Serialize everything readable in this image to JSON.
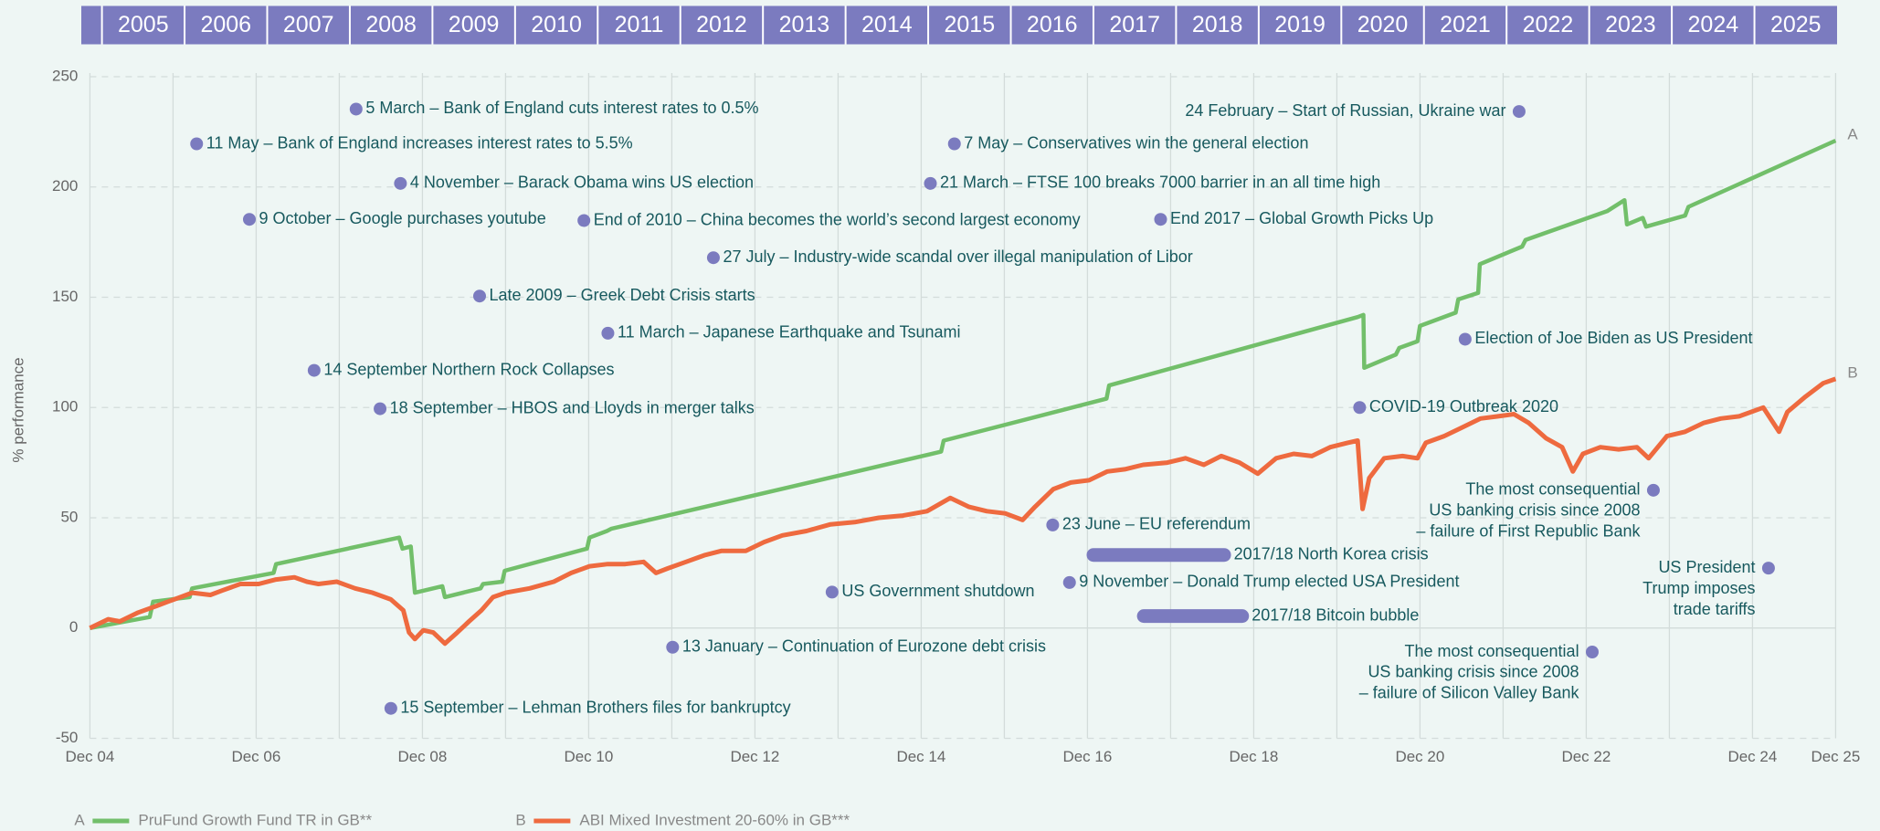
{
  "chart_data": {
    "type": "line",
    "year_header": [
      "2005",
      "2006",
      "2007",
      "2008",
      "2009",
      "2010",
      "2011",
      "2012",
      "2013",
      "2014",
      "2015",
      "2016",
      "2017",
      "2018",
      "2019",
      "2020",
      "2021",
      "2022",
      "2023",
      "2024",
      "2025"
    ],
    "ylabel": "% performance",
    "ylim": [
      -50,
      250
    ],
    "yticks": [
      -50,
      0,
      50,
      100,
      150,
      200,
      250
    ],
    "xlim": [
      2004.92,
      2025.92
    ],
    "xticks": [
      {
        "value": 2004.92,
        "label": "Dec 04"
      },
      {
        "value": 2005.92,
        "label": null
      },
      {
        "value": 2006.92,
        "label": "Dec 06"
      },
      {
        "value": 2007.92,
        "label": null
      },
      {
        "value": 2008.92,
        "label": "Dec 08"
      },
      {
        "value": 2009.92,
        "label": null
      },
      {
        "value": 2010.92,
        "label": "Dec 10"
      },
      {
        "value": 2011.92,
        "label": null
      },
      {
        "value": 2012.92,
        "label": "Dec 12"
      },
      {
        "value": 2013.92,
        "label": null
      },
      {
        "value": 2014.92,
        "label": "Dec 14"
      },
      {
        "value": 2015.92,
        "label": null
      },
      {
        "value": 2016.92,
        "label": "Dec 16"
      },
      {
        "value": 2017.92,
        "label": null
      },
      {
        "value": 2018.92,
        "label": "Dec 18"
      },
      {
        "value": 2019.92,
        "label": null
      },
      {
        "value": 2020.92,
        "label": "Dec 20"
      },
      {
        "value": 2021.92,
        "label": null
      },
      {
        "value": 2022.92,
        "label": "Dec 22"
      },
      {
        "value": 2023.92,
        "label": null
      },
      {
        "value": 2024.92,
        "label": "Dec 24"
      },
      {
        "value": 2025.92,
        "label": "Dec 25"
      }
    ],
    "grid": true,
    "series": [
      {
        "name": "PruFund Growth Fund TR in GB**",
        "label": "A",
        "color": "#72bf6a",
        "x": [
          2004.92,
          2005.64,
          2005.68,
          2006.12,
          2006.15,
          2007.13,
          2007.16,
          2008.64,
          2008.68,
          2008.78,
          2008.83,
          2009.16,
          2009.19,
          2009.62,
          2009.65,
          2009.88,
          2009.91,
          2010.9,
          2010.93,
          2011.14,
          2011.19,
          2015.16,
          2015.19,
          2017.15,
          2017.18,
          2020.17,
          2020.24,
          2020.25,
          2020.63,
          2020.67,
          2020.89,
          2020.92,
          2021.35,
          2021.38,
          2021.62,
          2021.64,
          2022.15,
          2022.19,
          2023.17,
          2023.38,
          2023.41,
          2023.6,
          2023.64,
          2024.11,
          2024.15,
          2025.92
        ],
        "values": [
          0,
          5,
          12,
          14,
          18,
          25,
          29,
          41,
          36,
          37,
          16,
          19,
          14,
          18,
          20,
          21,
          26,
          36,
          41,
          44,
          45,
          80,
          85,
          104,
          110,
          141,
          142,
          118,
          124,
          127,
          130,
          137,
          143,
          149,
          152,
          165,
          173,
          176,
          189,
          194,
          183,
          186,
          182,
          187,
          191,
          221
        ]
      },
      {
        "name": "ABI Mixed Investment 20-60% in GB***",
        "label": "B",
        "color": "#ee6a3f",
        "x": [
          2004.92,
          2005.14,
          2005.28,
          2005.5,
          2005.72,
          2005.86,
          2006.01,
          2006.15,
          2006.37,
          2006.51,
          2006.73,
          2006.95,
          2007.16,
          2007.38,
          2007.53,
          2007.67,
          2007.89,
          2008.11,
          2008.32,
          2008.54,
          2008.69,
          2008.76,
          2008.83,
          2008.93,
          2009.05,
          2009.19,
          2009.34,
          2009.48,
          2009.63,
          2009.77,
          2009.92,
          2010.21,
          2010.5,
          2010.71,
          2010.93,
          2011.15,
          2011.36,
          2011.58,
          2011.73,
          2011.87,
          2012.09,
          2012.31,
          2012.52,
          2012.81,
          2013.03,
          2013.25,
          2013.54,
          2013.83,
          2014.12,
          2014.41,
          2014.7,
          2014.99,
          2015.27,
          2015.49,
          2015.71,
          2015.93,
          2016.14,
          2016.29,
          2016.51,
          2016.72,
          2016.94,
          2017.16,
          2017.37,
          2017.59,
          2017.88,
          2018.1,
          2018.32,
          2018.53,
          2018.75,
          2018.97,
          2019.19,
          2019.4,
          2019.62,
          2019.84,
          2020.05,
          2020.17,
          2020.23,
          2020.31,
          2020.49,
          2020.71,
          2020.89,
          2020.99,
          2021.21,
          2021.43,
          2021.65,
          2021.86,
          2022.05,
          2022.23,
          2022.44,
          2022.63,
          2022.76,
          2022.88,
          2023.09,
          2023.31,
          2023.53,
          2023.67,
          2023.89,
          2024.11,
          2024.33,
          2024.54,
          2024.76,
          2025.05,
          2025.24,
          2025.34,
          2025.56,
          2025.77,
          2025.92
        ],
        "values": [
          0,
          4,
          3,
          7,
          10,
          12,
          14,
          16,
          15,
          17,
          20,
          20,
          22,
          23,
          21,
          20,
          21,
          18,
          16,
          13,
          8,
          -2,
          -5,
          -1,
          -2,
          -7,
          -2,
          3,
          8,
          14,
          16,
          18,
          21,
          25,
          28,
          29,
          29,
          30,
          25,
          27,
          30,
          33,
          35,
          35,
          39,
          42,
          44,
          47,
          48,
          50,
          51,
          53,
          59,
          55,
          53,
          52,
          49,
          55,
          63,
          66,
          67,
          71,
          72,
          74,
          75,
          77,
          74,
          78,
          75,
          70,
          77,
          79,
          78,
          82,
          84,
          85,
          54,
          68,
          77,
          78,
          77,
          84,
          87,
          91,
          95,
          96,
          97,
          93,
          86,
          82,
          71,
          79,
          82,
          81,
          82,
          77,
          87,
          89,
          93,
          95,
          96,
          100,
          89,
          98,
          105,
          111,
          113
        ]
      }
    ],
    "annotations": [
      {
        "lines": [
          "5 March – Bank of England cuts interest rates to 0.5%"
        ]
      },
      {
        "lines": [
          "11 May – Bank of England increases interest rates to 5.5%"
        ]
      },
      {
        "lines": [
          "4 November – Barack Obama wins US election"
        ]
      },
      {
        "lines": [
          "9 October – Google purchases youtube"
        ]
      },
      {
        "lines": [
          "End of 2010 – China becomes the world’s second largest economy"
        ]
      },
      {
        "lines": [
          "27 July – Industry-wide scandal over illegal manipulation of Libor"
        ]
      },
      {
        "lines": [
          "Late 2009 – Greek Debt Crisis starts"
        ]
      },
      {
        "lines": [
          "11 March – Japanese Earthquake and Tsunami"
        ]
      },
      {
        "lines": [
          "14 September Northern Rock Collapses"
        ]
      },
      {
        "lines": [
          "18 September – HBOS and Lloyds in merger talks"
        ]
      },
      {
        "lines": [
          "24 February – Start of Russian, Ukraine war"
        ]
      },
      {
        "lines": [
          "7 May – Conservatives win the general election"
        ]
      },
      {
        "lines": [
          "21 March – FTSE 100 breaks 7000 barrier in an all time high"
        ]
      },
      {
        "lines": [
          "End 2017 – Global Growth Picks Up"
        ]
      },
      {
        "lines": [
          "Election of Joe Biden as US President"
        ]
      },
      {
        "lines": [
          "COVID-19 Outbreak 2020"
        ]
      },
      {
        "lines": [
          "The most consequential",
          "US banking crisis since 2008",
          "– failure of First Republic Bank"
        ]
      },
      {
        "lines": [
          "23 June – EU referendum"
        ]
      },
      {
        "lines": [
          "2017/18 North Korea crisis"
        ]
      },
      {
        "lines": [
          "US Government shutdown"
        ]
      },
      {
        "lines": [
          "9 November – Donald Trump elected USA President"
        ]
      },
      {
        "lines": [
          "2017/18 Bitcoin bubble"
        ]
      },
      {
        "lines": [
          "US President",
          "Trump imposes",
          "trade tariffs"
        ]
      },
      {
        "lines": [
          "13 January – Continuation of Eurozone debt crisis"
        ]
      },
      {
        "lines": [
          "The most consequential",
          "US banking crisis since 2008",
          "– failure of Silicon Valley Bank"
        ]
      },
      {
        "lines": [
          "15 September – Lehman Brothers files for bankruptcy"
        ]
      }
    ]
  }
}
